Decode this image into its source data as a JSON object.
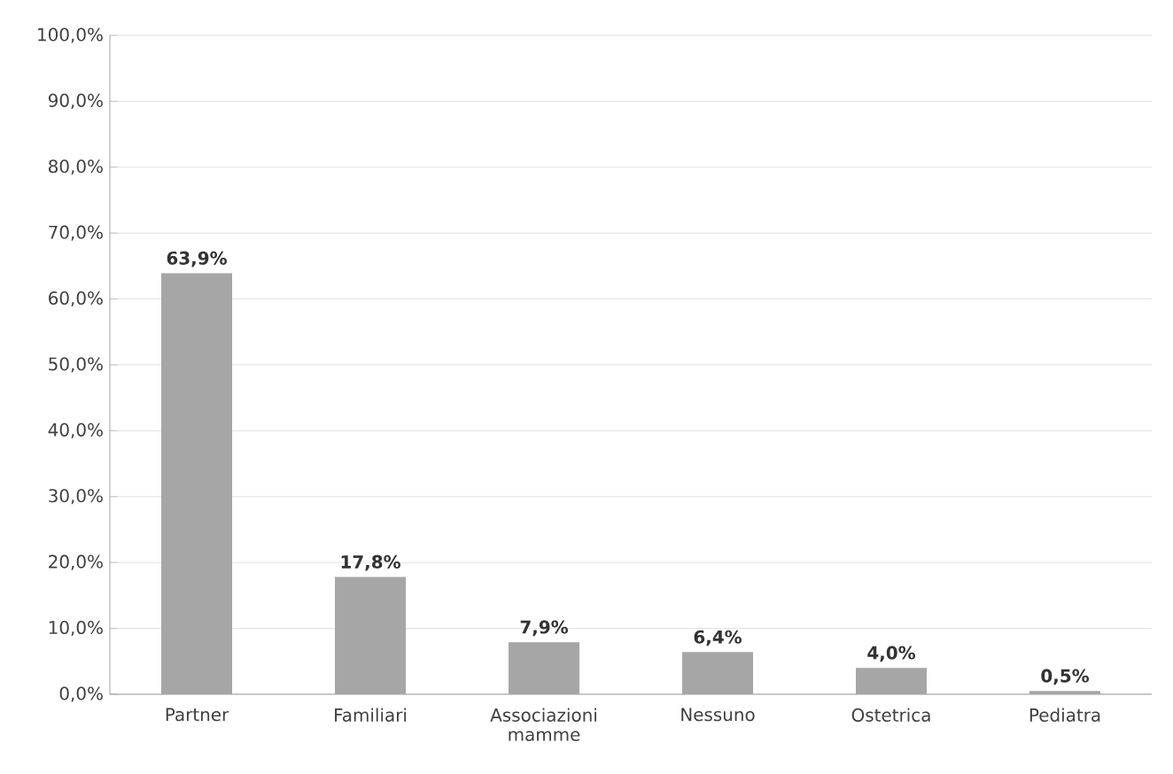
{
  "chart_data": {
    "type": "bar",
    "categories": [
      "Partner",
      "Familiari",
      "Associazioni mamme",
      "Nessuno",
      "Ostetrica",
      "Pediatra"
    ],
    "values": [
      63.9,
      17.8,
      7.9,
      6.4,
      4.0,
      0.5
    ],
    "value_labels": [
      "63,9%",
      "17,8%",
      "7,9%",
      "6,4%",
      "4,0%",
      "0,5%"
    ],
    "color": "#a6a6a6",
    "ylim": [
      0,
      100
    ],
    "yticks": [
      {
        "value": 0,
        "label": "0,0%"
      },
      {
        "value": 10,
        "label": "10,0%"
      },
      {
        "value": 20,
        "label": "20,0%"
      },
      {
        "value": 30,
        "label": "30,0%"
      },
      {
        "value": 40,
        "label": "40,0%"
      },
      {
        "value": 50,
        "label": "50,0%"
      },
      {
        "value": 60,
        "label": "60,0%"
      },
      {
        "value": 70,
        "label": "70,0%"
      },
      {
        "value": 80,
        "label": "80,0%"
      },
      {
        "value": 90,
        "label": "90,0%"
      },
      {
        "value": 100,
        "label": "100,0%"
      }
    ],
    "grid": "y"
  }
}
